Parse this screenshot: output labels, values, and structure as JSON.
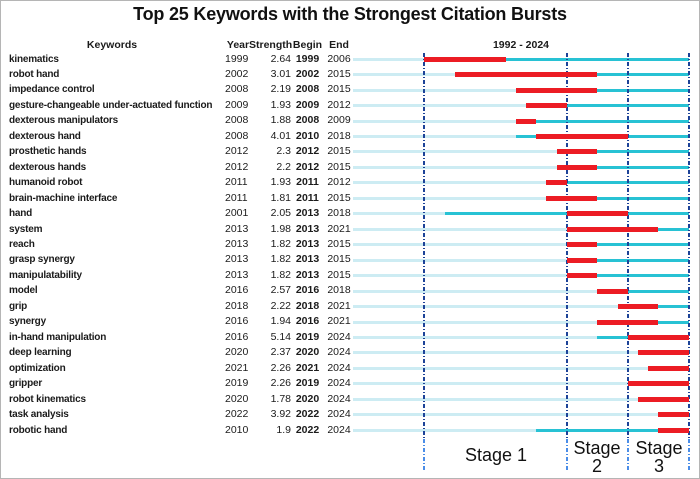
{
  "title": "Top 25 Keywords with the Strongest Citation Bursts",
  "columns": {
    "keywords": "Keywords",
    "year": "Year",
    "strength": "Strength",
    "begin": "Begin",
    "end": "End",
    "period": "1992 - 2024"
  },
  "stages": [
    {
      "label": "Stage 1"
    },
    {
      "label": "Stage 2"
    },
    {
      "label": "Stage 3"
    }
  ],
  "colors": {
    "burst": "#ec1c24",
    "active_line": "#28c2d4",
    "pre_line": "#cdecf3",
    "divider": "#1d4398",
    "divider_light": "#4a8de8",
    "text": "#1b1b1b"
  },
  "chart_data": {
    "type": "table",
    "title": "Top 25 Keywords with the Strongest Citation Bursts",
    "xlabel": "1992 - 2024",
    "timeline": {
      "start_year": 1992,
      "end_year": 2024,
      "axis_end_boundary": 2025,
      "stage_divider_years": [
        1999,
        2013,
        2019,
        2025
      ],
      "stage_ranges": [
        {
          "label": "Stage 1",
          "from": 1999,
          "to": 2013
        },
        {
          "label": "Stage 2",
          "from": 2013,
          "to": 2019
        },
        {
          "label": "Stage 3",
          "from": 2019,
          "to": 2025
        }
      ]
    },
    "rows": [
      {
        "keyword": "kinematics",
        "year": 1999,
        "strength": "2.64",
        "begin": 1999,
        "end": 2006
      },
      {
        "keyword": "robot hand",
        "year": 2002,
        "strength": "3.01",
        "begin": 2002,
        "end": 2015
      },
      {
        "keyword": "impedance control",
        "year": 2008,
        "strength": "2.19",
        "begin": 2008,
        "end": 2015
      },
      {
        "keyword": "gesture-changeable under-actuated function",
        "year": 2009,
        "strength": "1.93",
        "begin": 2009,
        "end": 2012
      },
      {
        "keyword": "dexterous manipulators",
        "year": 2008,
        "strength": "1.88",
        "begin": 2008,
        "end": 2009
      },
      {
        "keyword": "dexterous hand",
        "year": 2008,
        "strength": "4.01",
        "begin": 2010,
        "end": 2018
      },
      {
        "keyword": "prosthetic hands",
        "year": 2012,
        "strength": "2.3",
        "begin": 2012,
        "end": 2015
      },
      {
        "keyword": "dexterous hands",
        "year": 2012,
        "strength": "2.2",
        "begin": 2012,
        "end": 2015
      },
      {
        "keyword": "humanoid robot",
        "year": 2011,
        "strength": "1.93",
        "begin": 2011,
        "end": 2012
      },
      {
        "keyword": "brain-machine interface",
        "year": 2011,
        "strength": "1.81",
        "begin": 2011,
        "end": 2015
      },
      {
        "keyword": "hand",
        "year": 2001,
        "strength": "2.05",
        "begin": 2013,
        "end": 2018
      },
      {
        "keyword": "system",
        "year": 2013,
        "strength": "1.98",
        "begin": 2013,
        "end": 2021
      },
      {
        "keyword": "reach",
        "year": 2013,
        "strength": "1.82",
        "begin": 2013,
        "end": 2015
      },
      {
        "keyword": "grasp synergy",
        "year": 2013,
        "strength": "1.82",
        "begin": 2013,
        "end": 2015
      },
      {
        "keyword": "manipulatability",
        "year": 2013,
        "strength": "1.82",
        "begin": 2013,
        "end": 2015
      },
      {
        "keyword": "model",
        "year": 2016,
        "strength": "2.57",
        "begin": 2016,
        "end": 2018
      },
      {
        "keyword": "grip",
        "year": 2018,
        "strength": "2.22",
        "begin": 2018,
        "end": 2021
      },
      {
        "keyword": "synergy",
        "year": 2016,
        "strength": "1.94",
        "begin": 2016,
        "end": 2021
      },
      {
        "keyword": "in-hand manipulation",
        "year": 2016,
        "strength": "5.14",
        "begin": 2019,
        "end": 2024
      },
      {
        "keyword": "deep learning",
        "year": 2020,
        "strength": "2.37",
        "begin": 2020,
        "end": 2024
      },
      {
        "keyword": "optimization",
        "year": 2021,
        "strength": "2.26",
        "begin": 2021,
        "end": 2024
      },
      {
        "keyword": "gripper",
        "year": 2019,
        "strength": "2.26",
        "begin": 2019,
        "end": 2024
      },
      {
        "keyword": "robot kinematics",
        "year": 2020,
        "strength": "1.78",
        "begin": 2020,
        "end": 2024
      },
      {
        "keyword": "task analysis",
        "year": 2022,
        "strength": "3.92",
        "begin": 2022,
        "end": 2024
      },
      {
        "keyword": "robotic hand",
        "year": 2010,
        "strength": "1.9",
        "begin": 2022,
        "end": 2024
      }
    ]
  }
}
